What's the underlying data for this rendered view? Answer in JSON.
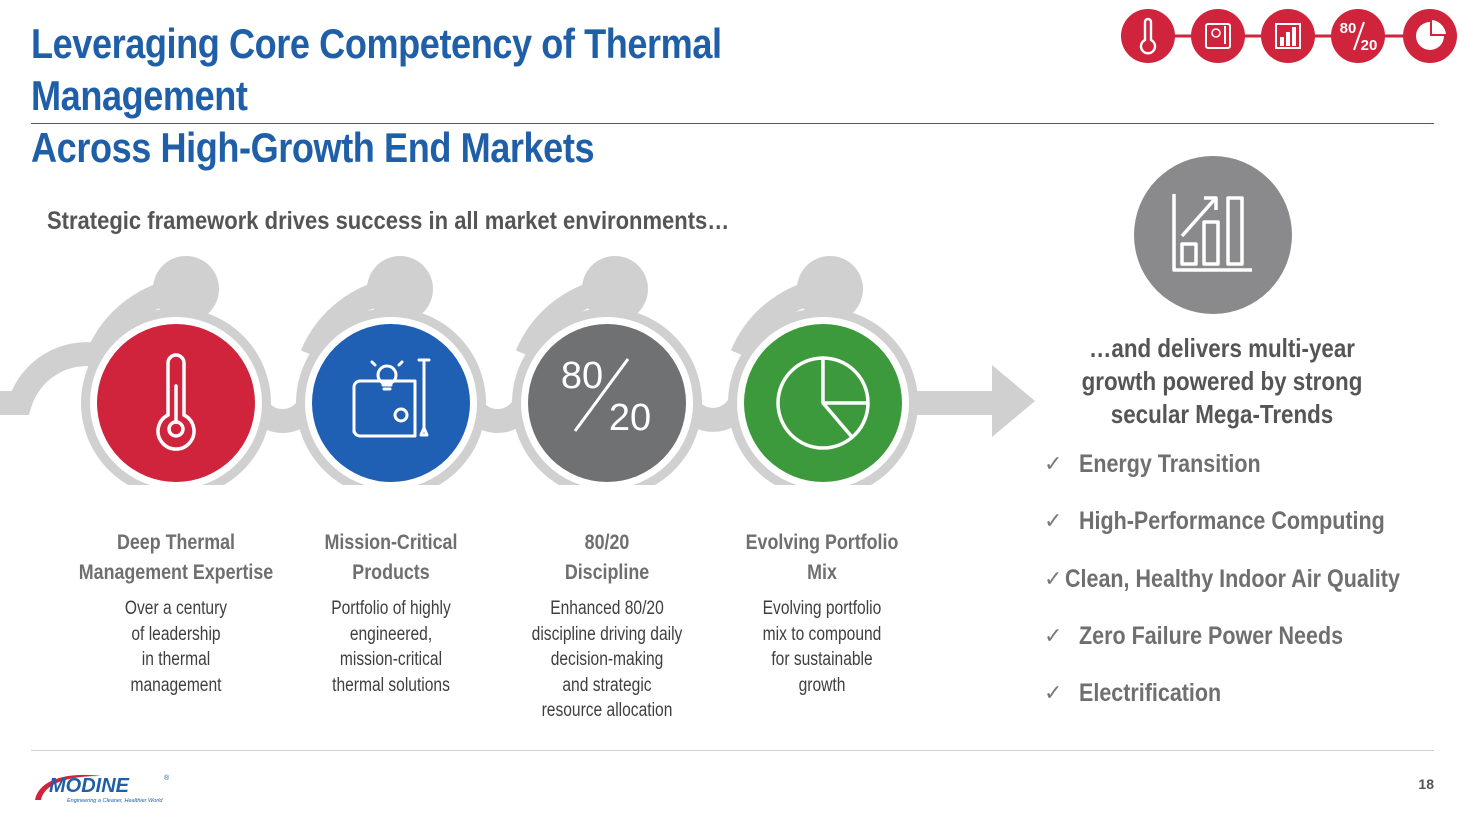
{
  "slide": {
    "title_line1": "Leveraging Core Competency of Thermal Management",
    "title_line2": "Across High-Growth End Markets",
    "subtitle": "Strategic framework drives success in all market environments…",
    "page_number": "18"
  },
  "top_icons": [
    {
      "icon": "thermometer-icon"
    },
    {
      "icon": "blueprint-icon"
    },
    {
      "icon": "bar-chart-icon"
    },
    {
      "icon": "eighty-twenty-icon",
      "text_top": "80",
      "text_bottom": "20"
    },
    {
      "icon": "pie-chart-icon"
    }
  ],
  "pillars": [
    {
      "icon": "thermometer-icon",
      "color": "#d0233c",
      "heading_line1": "Deep Thermal",
      "heading_line2": "Management Expertise",
      "desc": [
        "Over a century",
        "of leadership",
        "in thermal",
        "management"
      ]
    },
    {
      "icon": "blueprint-icon",
      "color": "#1f5fb4",
      "heading_line1": "Mission-Critical",
      "heading_line2": "Products",
      "desc": [
        "Portfolio of highly",
        "engineered,",
        "mission-critical",
        "thermal solutions"
      ]
    },
    {
      "icon": "eighty-twenty-icon",
      "color": "#707173",
      "icon_text_top": "80",
      "icon_text_bottom": "20",
      "heading_line1": "80/20",
      "heading_line2": "Discipline",
      "desc": [
        "Enhanced 80/20",
        "discipline driving daily",
        "decision-making",
        "and strategic",
        "resource allocation"
      ]
    },
    {
      "icon": "pie-chart-icon",
      "color": "#3d9a3c",
      "heading_line1": "Evolving Portfolio",
      "heading_line2": "Mix",
      "desc": [
        "Evolving portfolio",
        "mix to compound",
        "for sustainable",
        "growth"
      ]
    }
  ],
  "growth": {
    "icon": "growth-chart-icon",
    "line1": "…and delivers multi-year",
    "line2": "growth powered by strong",
    "line3": "secular Mega-Trends",
    "check_glyph": "✓",
    "trends": [
      "Energy Transition",
      "High-Performance Computing",
      "Clean, Healthy Indoor Air Quality",
      "Zero Failure Power Needs",
      "Electrification"
    ]
  },
  "logo": {
    "name": "MODINE",
    "tagline": "Engineering a Cleaner, Healthier World",
    "trademark": "®"
  },
  "colors": {
    "title_blue": "#1f5fa8",
    "accent_red": "#d0233c",
    "flow_gray": "#d0d0d0",
    "text_gray": "#6f6f6f"
  }
}
